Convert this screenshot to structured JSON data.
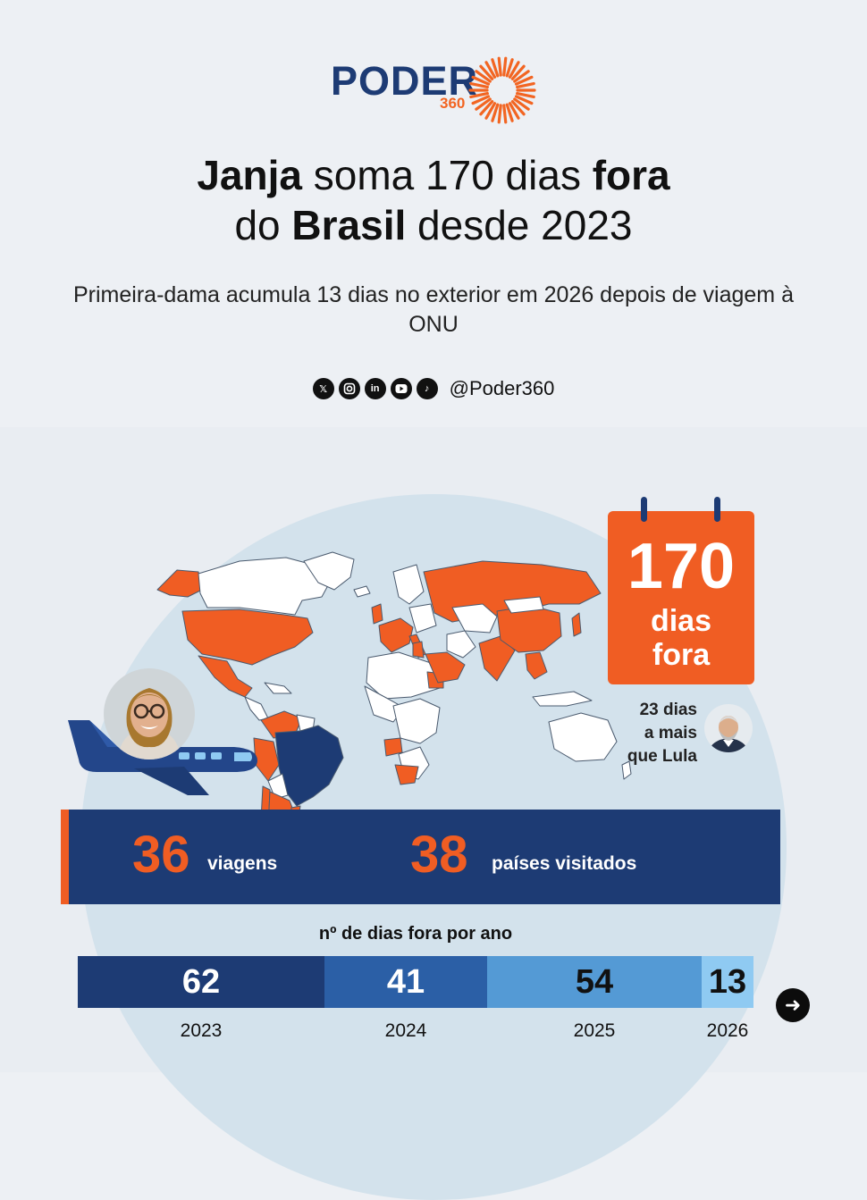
{
  "brand": {
    "word": "PODER",
    "number": "360",
    "accent_color": "#f26522",
    "brand_color": "#1d3b74"
  },
  "headline": {
    "part1_bold": "Janja",
    "part1": " soma 170 dias ",
    "part1_bold2": "fora",
    "part2": "do ",
    "part2_bold": "Brasil",
    "part2_end": " desde 2023"
  },
  "subtitle": "Primeira-dama acumula 13 dias no exterior em 2026 depois de viagem à ONU",
  "social": {
    "icons": [
      "x-icon",
      "instagram-icon",
      "linkedin-icon",
      "youtube-icon",
      "tiktok-icon"
    ],
    "handle": "@Poder360"
  },
  "calendar": {
    "number": "170",
    "label_line1": "dias",
    "label_line2": "fora"
  },
  "lula_note": {
    "line1": "23 dias",
    "line2": "a mais",
    "line3": "que Lula"
  },
  "stats": [
    {
      "value": "36",
      "label": "viagens"
    },
    {
      "value": "38",
      "label": "países visitados"
    }
  ],
  "chart_data": {
    "type": "bar",
    "title": "nº de dias fora por ano",
    "categories": [
      "2023",
      "2024",
      "2025",
      "2026"
    ],
    "values": [
      62,
      41,
      54,
      13
    ],
    "colors": [
      "#1d3b74",
      "#2b5fa6",
      "#549ad5",
      "#8fcaf2"
    ]
  }
}
